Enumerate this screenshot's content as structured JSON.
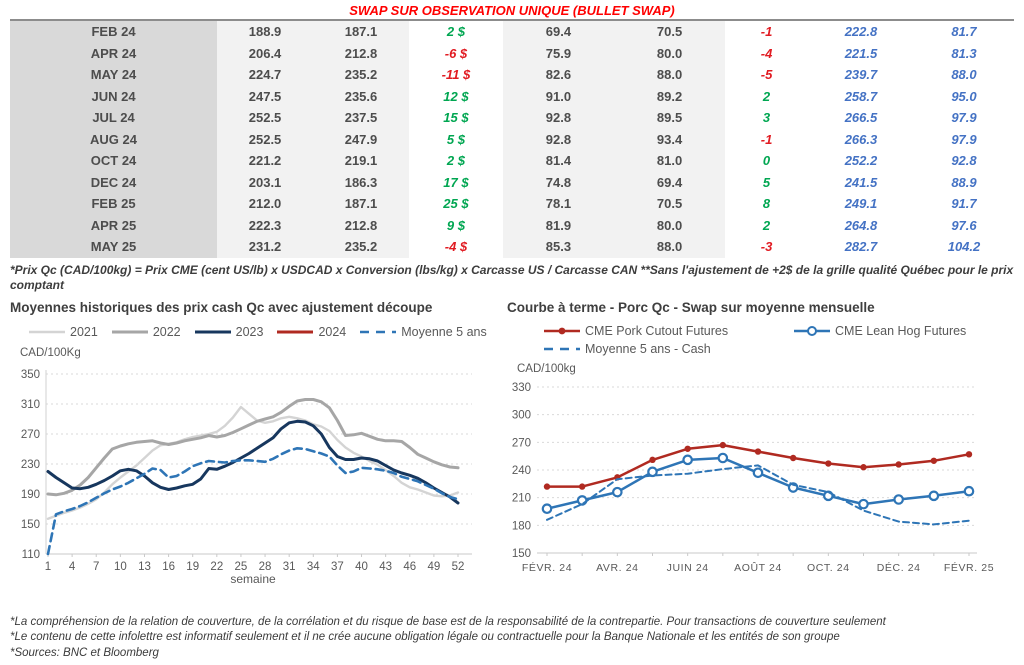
{
  "title": "SWAP SUR OBSERVATION UNIQUE (BULLET SWAP)",
  "table": {
    "rows": [
      [
        "FEB 24",
        "188.9",
        "187.1",
        "2 $",
        "69.4",
        "70.5",
        "-1",
        "222.8",
        "81.7"
      ],
      [
        "APR 24",
        "206.4",
        "212.8",
        "-6 $",
        "75.9",
        "80.0",
        "-4",
        "221.5",
        "81.3"
      ],
      [
        "MAY 24",
        "224.7",
        "235.2",
        "-11 $",
        "82.6",
        "88.0",
        "-5",
        "239.7",
        "88.0"
      ],
      [
        "JUN 24",
        "247.5",
        "235.6",
        "12 $",
        "91.0",
        "89.2",
        "2",
        "258.7",
        "95.0"
      ],
      [
        "JUL 24",
        "252.5",
        "237.5",
        "15 $",
        "92.8",
        "89.5",
        "3",
        "266.5",
        "97.9"
      ],
      [
        "AUG 24",
        "252.5",
        "247.9",
        "5 $",
        "92.8",
        "93.4",
        "-1",
        "266.3",
        "97.9"
      ],
      [
        "OCT 24",
        "221.2",
        "219.1",
        "2 $",
        "81.4",
        "81.0",
        "0",
        "252.2",
        "92.8"
      ],
      [
        "DEC 24",
        "203.1",
        "186.3",
        "17 $",
        "74.8",
        "69.4",
        "5",
        "241.5",
        "88.9"
      ],
      [
        "FEB 25",
        "212.0",
        "187.1",
        "25 $",
        "78.1",
        "70.5",
        "8",
        "249.1",
        "91.7"
      ],
      [
        "APR 25",
        "222.3",
        "212.8",
        "9 $",
        "81.9",
        "80.0",
        "2",
        "264.8",
        "97.6"
      ],
      [
        "MAY 25",
        "231.2",
        "235.2",
        "-4 $",
        "85.3",
        "88.0",
        "-3",
        "282.7",
        "104.2"
      ]
    ],
    "footnote": "*Prix Qc (CAD/100kg) = Prix CME (cent US/lb) x USDCAD x Conversion (lbs/kg) x Carcasse US / Carcasse CAN **Sans l'ajustement de +2$ de la grille qualité Québec pour le prix comptant"
  },
  "chart_data": [
    {
      "type": "line",
      "title": "Moyennes historiques des prix cash Qc avec ajustement découpe",
      "y_axis_label": "CAD/100Kg",
      "xlabel": "semaine",
      "ylim": [
        110,
        350
      ],
      "yticks": [
        110,
        150,
        190,
        230,
        270,
        310,
        350
      ],
      "xticks": [
        1,
        4,
        7,
        10,
        13,
        16,
        19,
        22,
        25,
        28,
        31,
        34,
        37,
        40,
        43,
        46,
        49,
        52
      ],
      "n_points": 52,
      "grid": "horizontal-dashed",
      "legend_position": "top",
      "series": [
        {
          "name": "2021",
          "color": "#d4d4d4",
          "width": 2.4,
          "values": [
            157,
            161,
            165,
            168,
            172,
            177,
            183,
            192,
            203,
            212,
            220,
            228,
            238,
            248,
            255,
            257,
            259,
            263,
            266,
            268,
            270,
            273,
            281,
            292,
            306,
            297,
            288,
            285,
            287,
            291,
            293,
            291,
            288,
            283,
            280,
            274,
            262,
            252,
            245,
            240,
            234,
            229,
            222,
            214,
            205,
            199,
            196,
            192,
            188,
            187,
            188,
            192
          ]
        },
        {
          "name": "2022",
          "color": "#a6a6a6",
          "width": 3,
          "values": [
            190,
            189,
            191,
            195,
            202,
            212,
            225,
            238,
            250,
            254,
            257,
            259,
            260,
            261,
            258,
            256,
            258,
            261,
            263,
            265,
            268,
            266,
            268,
            272,
            277,
            282,
            287,
            290,
            293,
            299,
            307,
            314,
            316,
            316,
            313,
            305,
            288,
            268,
            269,
            271,
            267,
            263,
            261,
            261,
            260,
            252,
            243,
            238,
            233,
            229,
            226,
            225
          ]
        },
        {
          "name": "2023",
          "color": "#17375e",
          "width": 3,
          "values": [
            220,
            212,
            205,
            198,
            197,
            199,
            203,
            208,
            214,
            221,
            223,
            221,
            214,
            205,
            199,
            196,
            198,
            201,
            203,
            210,
            224,
            223,
            227,
            232,
            238,
            244,
            251,
            258,
            265,
            277,
            285,
            287,
            286,
            281,
            270,
            252,
            240,
            236,
            236,
            238,
            237,
            234,
            228,
            222,
            218,
            215,
            211,
            205,
            198,
            192,
            186,
            178
          ]
        },
        {
          "name": "2024",
          "color": "#b02a21",
          "width": 3,
          "values": []
        },
        {
          "name": "Moyenne 5 ans",
          "color": "#2e75b6",
          "width": 2.6,
          "dash": "8 5",
          "values": [
            110,
            163,
            167,
            170,
            174,
            179,
            185,
            191,
            196,
            200,
            205,
            211,
            217,
            224,
            222,
            212,
            214,
            220,
            227,
            231,
            234,
            233,
            232,
            234,
            235,
            235,
            234,
            233,
            237,
            243,
            248,
            251,
            250,
            247,
            244,
            240,
            228,
            218,
            220,
            225,
            224,
            223,
            221,
            218,
            213,
            210,
            207,
            202,
            197,
            191,
            186,
            183
          ]
        }
      ]
    },
    {
      "type": "line",
      "title": "Courbe à terme - Porc Qc - Swap sur moyenne mensuelle",
      "y_axis_label": "CAD/100kg",
      "ylim": [
        150,
        330
      ],
      "yticks": [
        150,
        180,
        210,
        240,
        270,
        300,
        330
      ],
      "n_points": 13,
      "xtick_labels": [
        "FÉVR. 24",
        "AVR. 24",
        "JUIN 24",
        "AOÛT 24",
        "OCT. 24",
        "DÉC. 24",
        "FÉVR. 25"
      ],
      "xtick_indices": [
        0,
        2,
        4,
        6,
        8,
        10,
        12
      ],
      "grid": "horizontal-dashed",
      "legend_position": "top",
      "series": [
        {
          "name": "CME Pork Cutout Futures",
          "color": "#b02a21",
          "width": 2.5,
          "marker": "filled",
          "values": [
            222,
            222,
            232,
            251,
            263,
            267,
            260,
            253,
            247,
            243,
            246,
            250,
            257
          ]
        },
        {
          "name": "CME Lean Hog Futures",
          "color": "#2e75b6",
          "width": 2.5,
          "marker": "open",
          "values": [
            198,
            207,
            216,
            238,
            251,
            253,
            237,
            221,
            212,
            203,
            208,
            212,
            217
          ]
        },
        {
          "name": "Moyenne 5 ans - Cash",
          "color": "#2e75b6",
          "width": 2,
          "dash": "6 4",
          "values": [
            186,
            203,
            230,
            234,
            236,
            241,
            245,
            224,
            216,
            196,
            184,
            181,
            185
          ]
        }
      ]
    }
  ],
  "footer_notes": [
    "*La compréhension de la relation de couverture, de la corrélation et du risque de base est de la responsabilité de la contrepartie. Pour transactions de couverture seulement",
    "*Le contenu de cette infolettre est informatif seulement et il ne crée aucune obligation légale ou contractuelle pour la Banque Nationale et les entités de son groupe",
    "*Sources: BNC et Bloomberg"
  ]
}
